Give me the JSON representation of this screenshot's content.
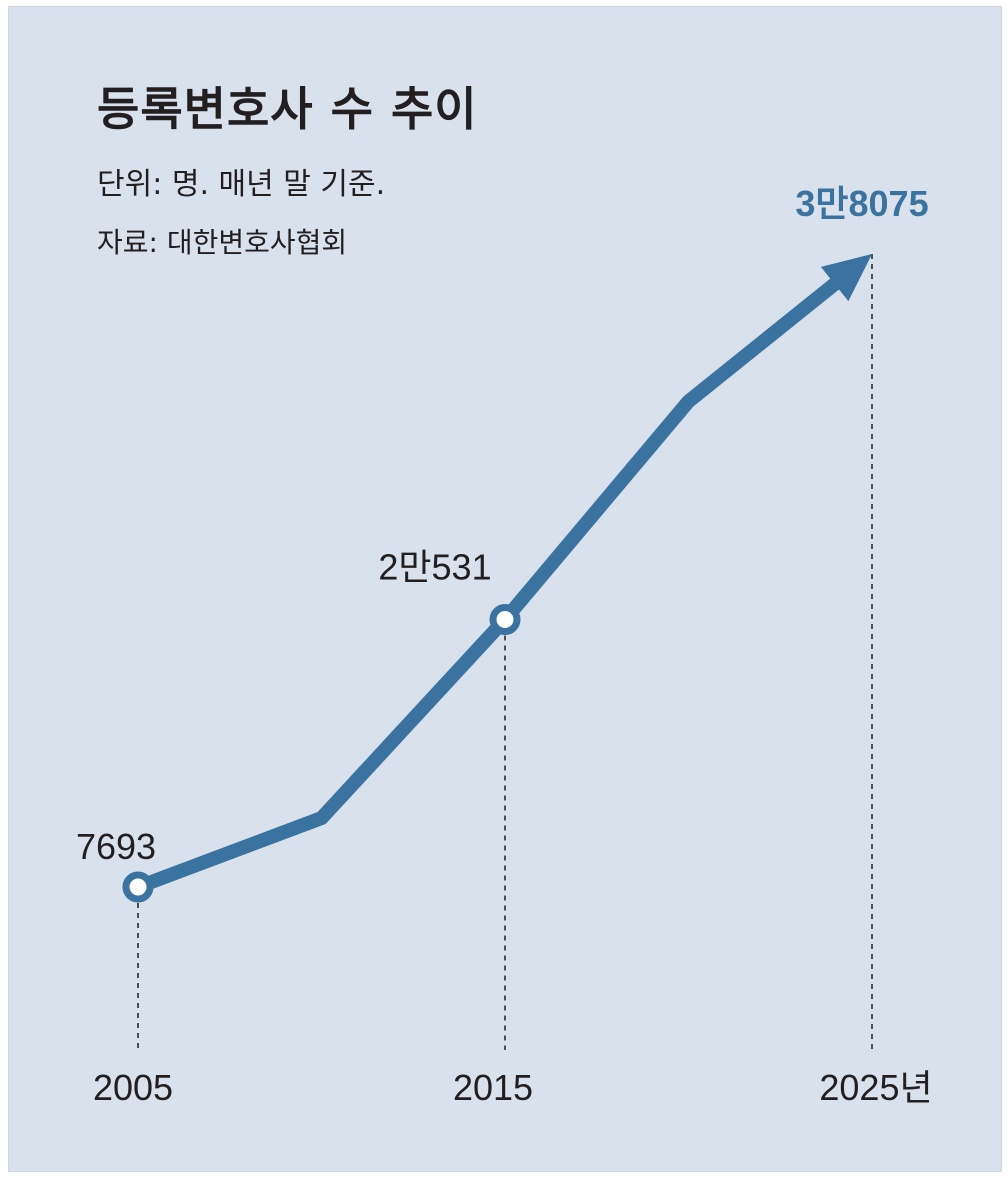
{
  "title": "등록변호사 수 추이",
  "unit_note": "단위: 명. 매년 말 기준.",
  "source_note": "자료: 대한변호사협회",
  "colors": {
    "background": "#d9e1ec",
    "line": "#3a72a0",
    "text": "#231f20"
  },
  "chart_data": {
    "type": "line",
    "title": "등록변호사 수 추이",
    "xlabel": "",
    "ylabel": "",
    "x_ticks": [
      "2005",
      "2015",
      "2025년"
    ],
    "data_labels": [
      "7693",
      "2만531",
      "3만8075"
    ],
    "series": [
      {
        "x": [
          2005,
          2010,
          2015,
          2020,
          2025
        ],
        "values": [
          7693,
          11000,
          20531,
          31000,
          38075
        ]
      }
    ],
    "grid": false,
    "legend": "none"
  }
}
